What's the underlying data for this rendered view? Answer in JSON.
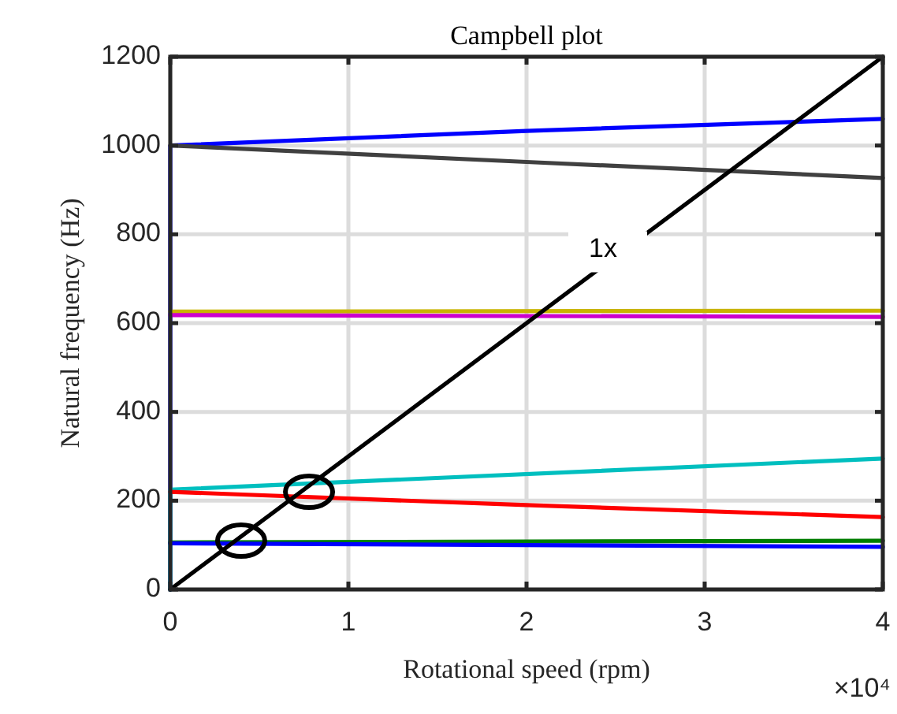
{
  "chart_data": {
    "type": "line",
    "title": "Campbell plot",
    "xlabel": "Rotational speed (rpm)",
    "ylabel": "Natural frequency (Hz)",
    "xlim": [
      0,
      4
    ],
    "ylim": [
      0,
      1200
    ],
    "xticks": [
      0,
      1,
      2,
      3,
      4
    ],
    "yticks": [
      0,
      200,
      400,
      600,
      800,
      1000,
      1200
    ],
    "grid": true,
    "line_style": "solid",
    "marker": "none",
    "series": [
      {
        "color": "#0000ff",
        "x": [
          0,
          0,
          2,
          4
        ],
        "values": [
          0,
          1000,
          1033,
          1060
        ]
      },
      {
        "color": "#404040",
        "x": [
          0,
          2,
          4
        ],
        "values": [
          1000,
          963,
          927
        ]
      },
      {
        "color": "#c8b400",
        "x": [
          0,
          4
        ],
        "values": [
          626,
          628
        ]
      },
      {
        "color": "#cc00cc",
        "x": [
          0,
          4
        ],
        "values": [
          618,
          614
        ]
      },
      {
        "color": "#00bfbf",
        "x": [
          0,
          0,
          4
        ],
        "values": [
          0,
          225,
          295
        ]
      },
      {
        "color": "#ff0000",
        "x": [
          0,
          2,
          4
        ],
        "values": [
          220,
          190,
          163
        ]
      },
      {
        "color": "#007f00",
        "x": [
          0,
          4
        ],
        "values": [
          106,
          110
        ]
      },
      {
        "color": "#0000ff",
        "x": [
          0,
          4
        ],
        "values": [
          104,
          96
        ]
      },
      {
        "color": "#000000",
        "x": [
          0,
          4
        ],
        "values": [
          0,
          1200
        ]
      },
      {
        "type": "scatter",
        "color": "#000000",
        "marker": "circle",
        "x": [
          0.398,
          0.779
        ],
        "values": [
          110,
          220
        ]
      }
    ],
    "annotations": [
      {
        "text": "1x",
        "x": 2.5,
        "y": 750
      },
      "×10⁴"
    ]
  }
}
